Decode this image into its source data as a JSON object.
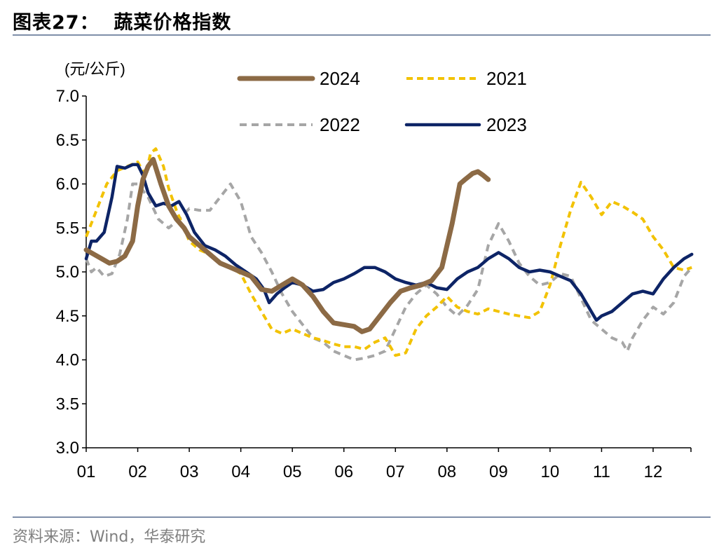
{
  "header": {
    "title": "图表27：  蔬菜价格指数"
  },
  "footer": {
    "source": "资料来源：Wind，华泰研究"
  },
  "chart_data": {
    "type": "line",
    "title": "蔬菜价格指数",
    "unit_label": "(元/公斤)",
    "ylim": [
      3.0,
      7.0
    ],
    "y_ticks": [
      "7.0",
      "6.5",
      "6.0",
      "5.5",
      "5.0",
      "4.5",
      "4.0",
      "3.5",
      "3.0"
    ],
    "x_ticks": [
      "01",
      "02",
      "03",
      "04",
      "05",
      "06",
      "07",
      "08",
      "09",
      "10",
      "11",
      "12"
    ],
    "xlim": [
      1,
      12.75
    ],
    "grid": false,
    "legend_position": "top",
    "series": [
      {
        "name": "2024",
        "color": "#8c6a45",
        "style": "solid-thick",
        "points": [
          [
            1.0,
            5.25
          ],
          [
            1.15,
            5.2
          ],
          [
            1.3,
            5.15
          ],
          [
            1.45,
            5.1
          ],
          [
            1.6,
            5.12
          ],
          [
            1.75,
            5.18
          ],
          [
            1.9,
            5.35
          ],
          [
            2.0,
            5.75
          ],
          [
            2.1,
            6.05
          ],
          [
            2.2,
            6.2
          ],
          [
            2.3,
            6.28
          ],
          [
            2.45,
            6.0
          ],
          [
            2.6,
            5.75
          ],
          [
            2.75,
            5.6
          ],
          [
            2.9,
            5.5
          ],
          [
            3.0,
            5.4
          ],
          [
            3.2,
            5.3
          ],
          [
            3.4,
            5.2
          ],
          [
            3.6,
            5.1
          ],
          [
            3.8,
            5.05
          ],
          [
            4.0,
            5.0
          ],
          [
            4.2,
            4.95
          ],
          [
            4.4,
            4.8
          ],
          [
            4.6,
            4.78
          ],
          [
            4.8,
            4.85
          ],
          [
            5.0,
            4.92
          ],
          [
            5.2,
            4.85
          ],
          [
            5.4,
            4.72
          ],
          [
            5.6,
            4.55
          ],
          [
            5.8,
            4.42
          ],
          [
            6.0,
            4.4
          ],
          [
            6.2,
            4.38
          ],
          [
            6.35,
            4.32
          ],
          [
            6.5,
            4.35
          ],
          [
            6.7,
            4.5
          ],
          [
            6.9,
            4.65
          ],
          [
            7.1,
            4.78
          ],
          [
            7.3,
            4.82
          ],
          [
            7.5,
            4.85
          ],
          [
            7.7,
            4.9
          ],
          [
            7.9,
            5.05
          ],
          [
            8.1,
            5.55
          ],
          [
            8.25,
            6.0
          ],
          [
            8.35,
            6.05
          ],
          [
            8.5,
            6.12
          ],
          [
            8.6,
            6.14
          ],
          [
            8.7,
            6.1
          ],
          [
            8.8,
            6.05
          ]
        ]
      },
      {
        "name": "2021",
        "color": "#f2c200",
        "style": "dashed",
        "points": [
          [
            1.0,
            5.4
          ],
          [
            1.2,
            5.7
          ],
          [
            1.4,
            6.0
          ],
          [
            1.6,
            6.15
          ],
          [
            1.8,
            6.2
          ],
          [
            2.0,
            6.25
          ],
          [
            2.15,
            6.1
          ],
          [
            2.25,
            6.35
          ],
          [
            2.35,
            6.4
          ],
          [
            2.5,
            6.2
          ],
          [
            2.6,
            5.95
          ],
          [
            2.75,
            5.7
          ],
          [
            2.9,
            5.5
          ],
          [
            3.0,
            5.35
          ],
          [
            3.2,
            5.25
          ],
          [
            3.4,
            5.2
          ],
          [
            3.6,
            5.1
          ],
          [
            3.8,
            5.05
          ],
          [
            4.0,
            4.98
          ],
          [
            4.2,
            4.75
          ],
          [
            4.4,
            4.55
          ],
          [
            4.6,
            4.35
          ],
          [
            4.8,
            4.3
          ],
          [
            5.0,
            4.35
          ],
          [
            5.2,
            4.3
          ],
          [
            5.4,
            4.25
          ],
          [
            5.6,
            4.22
          ],
          [
            5.8,
            4.18
          ],
          [
            6.0,
            4.15
          ],
          [
            6.2,
            4.15
          ],
          [
            6.4,
            4.12
          ],
          [
            6.6,
            4.2
          ],
          [
            6.8,
            4.25
          ],
          [
            7.0,
            4.05
          ],
          [
            7.2,
            4.08
          ],
          [
            7.4,
            4.35
          ],
          [
            7.6,
            4.5
          ],
          [
            7.8,
            4.6
          ],
          [
            8.0,
            4.72
          ],
          [
            8.2,
            4.6
          ],
          [
            8.4,
            4.55
          ],
          [
            8.6,
            4.52
          ],
          [
            8.8,
            4.58
          ],
          [
            9.0,
            4.55
          ],
          [
            9.2,
            4.52
          ],
          [
            9.4,
            4.5
          ],
          [
            9.6,
            4.48
          ],
          [
            9.8,
            4.55
          ],
          [
            10.0,
            4.85
          ],
          [
            10.2,
            5.3
          ],
          [
            10.4,
            5.7
          ],
          [
            10.6,
            6.02
          ],
          [
            10.8,
            5.85
          ],
          [
            11.0,
            5.65
          ],
          [
            11.2,
            5.8
          ],
          [
            11.4,
            5.75
          ],
          [
            11.6,
            5.68
          ],
          [
            11.8,
            5.6
          ],
          [
            12.0,
            5.4
          ],
          [
            12.2,
            5.25
          ],
          [
            12.4,
            5.05
          ],
          [
            12.6,
            5.02
          ],
          [
            12.75,
            5.05
          ]
        ]
      },
      {
        "name": "2022",
        "color": "#a6a6a6",
        "style": "dashed",
        "points": [
          [
            1.0,
            5.15
          ],
          [
            1.1,
            5.0
          ],
          [
            1.2,
            5.05
          ],
          [
            1.35,
            4.95
          ],
          [
            1.5,
            4.98
          ],
          [
            1.65,
            5.2
          ],
          [
            1.8,
            5.6
          ],
          [
            1.9,
            6.0
          ],
          [
            2.0,
            6.0
          ],
          [
            2.2,
            5.85
          ],
          [
            2.4,
            5.6
          ],
          [
            2.6,
            5.5
          ],
          [
            2.8,
            5.6
          ],
          [
            3.0,
            5.72
          ],
          [
            3.2,
            5.7
          ],
          [
            3.4,
            5.7
          ],
          [
            3.6,
            5.85
          ],
          [
            3.8,
            6.0
          ],
          [
            4.0,
            5.8
          ],
          [
            4.2,
            5.4
          ],
          [
            4.4,
            5.22
          ],
          [
            4.6,
            5.0
          ],
          [
            4.8,
            4.75
          ],
          [
            5.0,
            4.55
          ],
          [
            5.2,
            4.4
          ],
          [
            5.4,
            4.25
          ],
          [
            5.6,
            4.2
          ],
          [
            5.8,
            4.1
          ],
          [
            6.0,
            4.05
          ],
          [
            6.2,
            4.0
          ],
          [
            6.4,
            4.02
          ],
          [
            6.6,
            4.05
          ],
          [
            6.8,
            4.1
          ],
          [
            7.0,
            4.35
          ],
          [
            7.2,
            4.6
          ],
          [
            7.4,
            4.75
          ],
          [
            7.6,
            4.85
          ],
          [
            7.8,
            4.75
          ],
          [
            8.0,
            4.6
          ],
          [
            8.2,
            4.5
          ],
          [
            8.4,
            4.62
          ],
          [
            8.6,
            4.8
          ],
          [
            8.8,
            5.3
          ],
          [
            9.0,
            5.55
          ],
          [
            9.2,
            5.35
          ],
          [
            9.4,
            5.1
          ],
          [
            9.6,
            4.95
          ],
          [
            9.8,
            4.85
          ],
          [
            10.0,
            4.88
          ],
          [
            10.2,
            4.98
          ],
          [
            10.4,
            4.95
          ],
          [
            10.6,
            4.7
          ],
          [
            10.8,
            4.45
          ],
          [
            11.0,
            4.35
          ],
          [
            11.2,
            4.25
          ],
          [
            11.4,
            4.2
          ],
          [
            11.5,
            4.1
          ],
          [
            11.6,
            4.25
          ],
          [
            11.8,
            4.45
          ],
          [
            12.0,
            4.6
          ],
          [
            12.2,
            4.52
          ],
          [
            12.4,
            4.65
          ],
          [
            12.6,
            4.95
          ],
          [
            12.75,
            5.05
          ]
        ]
      },
      {
        "name": "2023",
        "color": "#0d2466",
        "style": "solid",
        "points": [
          [
            1.0,
            5.15
          ],
          [
            1.1,
            5.35
          ],
          [
            1.2,
            5.35
          ],
          [
            1.35,
            5.45
          ],
          [
            1.5,
            5.85
          ],
          [
            1.6,
            6.2
          ],
          [
            1.75,
            6.18
          ],
          [
            1.9,
            6.22
          ],
          [
            2.0,
            6.22
          ],
          [
            2.1,
            6.1
          ],
          [
            2.2,
            5.9
          ],
          [
            2.35,
            5.75
          ],
          [
            2.5,
            5.78
          ],
          [
            2.65,
            5.75
          ],
          [
            2.8,
            5.8
          ],
          [
            2.95,
            5.65
          ],
          [
            3.1,
            5.45
          ],
          [
            3.3,
            5.3
          ],
          [
            3.5,
            5.25
          ],
          [
            3.7,
            5.18
          ],
          [
            3.9,
            5.08
          ],
          [
            4.1,
            5.0
          ],
          [
            4.3,
            4.92
          ],
          [
            4.45,
            4.8
          ],
          [
            4.55,
            4.65
          ],
          [
            4.7,
            4.75
          ],
          [
            4.85,
            4.82
          ],
          [
            5.0,
            4.88
          ],
          [
            5.2,
            4.85
          ],
          [
            5.4,
            4.78
          ],
          [
            5.6,
            4.8
          ],
          [
            5.8,
            4.88
          ],
          [
            6.0,
            4.92
          ],
          [
            6.2,
            4.98
          ],
          [
            6.4,
            5.05
          ],
          [
            6.6,
            5.05
          ],
          [
            6.8,
            5.0
          ],
          [
            7.0,
            4.92
          ],
          [
            7.2,
            4.88
          ],
          [
            7.4,
            4.85
          ],
          [
            7.6,
            4.88
          ],
          [
            7.8,
            4.82
          ],
          [
            8.0,
            4.8
          ],
          [
            8.2,
            4.92
          ],
          [
            8.4,
            5.0
          ],
          [
            8.6,
            5.05
          ],
          [
            8.8,
            5.15
          ],
          [
            9.0,
            5.22
          ],
          [
            9.2,
            5.15
          ],
          [
            9.4,
            5.05
          ],
          [
            9.6,
            5.0
          ],
          [
            9.8,
            5.02
          ],
          [
            10.0,
            5.0
          ],
          [
            10.2,
            4.95
          ],
          [
            10.4,
            4.9
          ],
          [
            10.6,
            4.75
          ],
          [
            10.8,
            4.55
          ],
          [
            10.9,
            4.45
          ],
          [
            11.0,
            4.5
          ],
          [
            11.2,
            4.55
          ],
          [
            11.4,
            4.65
          ],
          [
            11.6,
            4.75
          ],
          [
            11.8,
            4.78
          ],
          [
            12.0,
            4.75
          ],
          [
            12.2,
            4.92
          ],
          [
            12.4,
            5.05
          ],
          [
            12.6,
            5.15
          ],
          [
            12.75,
            5.2
          ]
        ]
      }
    ]
  }
}
